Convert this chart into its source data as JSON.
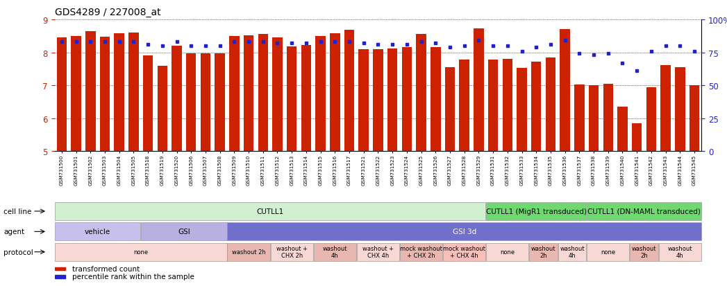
{
  "title": "GDS4289 / 227008_at",
  "samples": [
    "GSM731500",
    "GSM731501",
    "GSM731502",
    "GSM731503",
    "GSM731504",
    "GSM731505",
    "GSM731518",
    "GSM731519",
    "GSM731520",
    "GSM731506",
    "GSM731507",
    "GSM731508",
    "GSM731509",
    "GSM731510",
    "GSM731511",
    "GSM731512",
    "GSM731513",
    "GSM731514",
    "GSM731515",
    "GSM731516",
    "GSM731517",
    "GSM731521",
    "GSM731522",
    "GSM731523",
    "GSM731524",
    "GSM731525",
    "GSM731526",
    "GSM731527",
    "GSM731528",
    "GSM731529",
    "GSM731531",
    "GSM731532",
    "GSM731533",
    "GSM731534",
    "GSM731535",
    "GSM731536",
    "GSM731537",
    "GSM731538",
    "GSM731539",
    "GSM731540",
    "GSM731541",
    "GSM731542",
    "GSM731543",
    "GSM731544",
    "GSM731545"
  ],
  "bar_values": [
    8.45,
    8.5,
    8.65,
    8.48,
    8.58,
    8.6,
    7.9,
    7.6,
    8.2,
    7.97,
    7.97,
    7.98,
    8.5,
    8.52,
    8.55,
    8.45,
    8.18,
    8.22,
    8.5,
    8.58,
    8.68,
    8.1,
    8.1,
    8.12,
    8.15,
    8.55,
    8.16,
    7.55,
    7.78,
    8.72,
    7.78,
    7.8,
    7.52,
    7.72,
    7.85,
    8.7,
    7.02,
    7.0,
    7.05,
    6.35,
    5.85,
    6.95,
    7.62,
    7.55,
    7.0
  ],
  "blue_values": [
    83,
    83,
    83,
    83,
    83,
    83,
    81,
    80,
    83,
    80,
    80,
    80,
    83,
    83,
    83,
    82,
    82,
    82,
    83,
    83,
    83,
    82,
    81,
    81,
    81,
    83,
    82,
    79,
    80,
    84,
    80,
    80,
    76,
    79,
    81,
    84,
    74,
    73,
    74,
    67,
    61,
    76,
    80,
    80,
    76
  ],
  "bar_color": "#cc2200",
  "blue_color": "#2222cc",
  "ylim_left": [
    5,
    9
  ],
  "ylim_right": [
    0,
    100
  ],
  "yticks_left": [
    5,
    6,
    7,
    8,
    9
  ],
  "yticks_right": [
    0,
    25,
    50,
    75,
    100
  ],
  "cell_line_data": [
    {
      "label": "CUTLL1",
      "start": 0,
      "end": 30,
      "color": "#d0f0d0"
    },
    {
      "label": "CUTLL1 (MigR1 transduced)",
      "start": 30,
      "end": 37,
      "color": "#70d870"
    },
    {
      "label": "CUTLL1 (DN-MAML transduced)",
      "start": 37,
      "end": 45,
      "color": "#70d870"
    }
  ],
  "agent_data": [
    {
      "label": "vehicle",
      "start": 0,
      "end": 6,
      "color": "#c8c0ec"
    },
    {
      "label": "GSI",
      "start": 6,
      "end": 12,
      "color": "#b8b0e0"
    },
    {
      "label": "GSI 3d",
      "start": 12,
      "end": 45,
      "color": "#7070cc"
    }
  ],
  "protocol_data": [
    {
      "label": "none",
      "start": 0,
      "end": 12,
      "color": "#f8d8d4"
    },
    {
      "label": "washout 2h",
      "start": 12,
      "end": 15,
      "color": "#e8b8b0"
    },
    {
      "label": "washout +\nCHX 2h",
      "start": 15,
      "end": 18,
      "color": "#f8d8d4"
    },
    {
      "label": "washout\n4h",
      "start": 18,
      "end": 21,
      "color": "#e8b8b0"
    },
    {
      "label": "washout +\nCHX 4h",
      "start": 21,
      "end": 24,
      "color": "#f8d8d4"
    },
    {
      "label": "mock washout\n+ CHX 2h",
      "start": 24,
      "end": 27,
      "color": "#e8b8b0"
    },
    {
      "label": "mock washout\n+ CHX 4h",
      "start": 27,
      "end": 30,
      "color": "#f8c0b8"
    },
    {
      "label": "none",
      "start": 30,
      "end": 33,
      "color": "#f8d8d4"
    },
    {
      "label": "washout\n2h",
      "start": 33,
      "end": 35,
      "color": "#e8b8b0"
    },
    {
      "label": "washout\n4h",
      "start": 35,
      "end": 37,
      "color": "#f8d8d4"
    },
    {
      "label": "none",
      "start": 37,
      "end": 40,
      "color": "#f8d8d4"
    },
    {
      "label": "washout\n2h",
      "start": 40,
      "end": 42,
      "color": "#e8b8b0"
    },
    {
      "label": "washout\n4h",
      "start": 42,
      "end": 45,
      "color": "#f8d8d4"
    }
  ],
  "legend_items": [
    {
      "label": "transformed count",
      "color": "#cc2200"
    },
    {
      "label": "percentile rank within the sample",
      "color": "#2222cc"
    }
  ],
  "background_color": "#ffffff"
}
